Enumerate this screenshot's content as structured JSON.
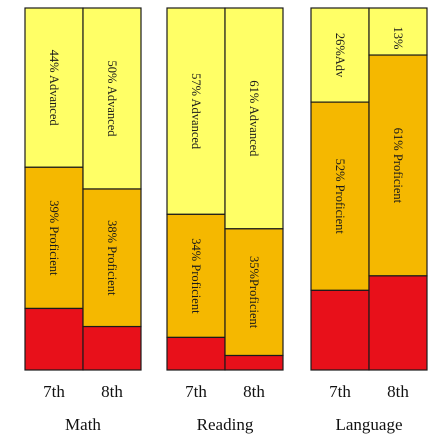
{
  "colors": {
    "advanced": "#ffff66",
    "proficient": "#f5b800",
    "below": "#e8101a",
    "border": "#1a1a1a"
  },
  "chart_data": {
    "type": "bar",
    "stacked": true,
    "orientation": "vertical",
    "grid": false,
    "groups": [
      {
        "subject": "Math",
        "grades": [
          {
            "grade": "7th",
            "advanced": 44,
            "proficient": 39,
            "advanced_label": "44% Advanced",
            "proficient_label": "39% Proficient"
          },
          {
            "grade": "8th",
            "advanced": 50,
            "proficient": 38,
            "advanced_label": "50% Advanced",
            "proficient_label": "38% Proficient"
          }
        ]
      },
      {
        "subject": "Reading",
        "grades": [
          {
            "grade": "7th",
            "advanced": 57,
            "proficient": 34,
            "advanced_label": "57% Advanced",
            "proficient_label": "34% Proficient"
          },
          {
            "grade": "8th",
            "advanced": 61,
            "proficient": 35,
            "advanced_label": "61% Advanced",
            "proficient_label": "35%Proficient"
          }
        ]
      },
      {
        "subject": "Language",
        "grades": [
          {
            "grade": "7th",
            "advanced": 26,
            "proficient": 52,
            "advanced_label": "26%Adv",
            "proficient_label": "52% Proficient"
          },
          {
            "grade": "8th",
            "advanced": 13,
            "proficient": 61,
            "advanced_label": "13%",
            "proficient_label": "61% Proficient"
          }
        ]
      }
    ]
  }
}
